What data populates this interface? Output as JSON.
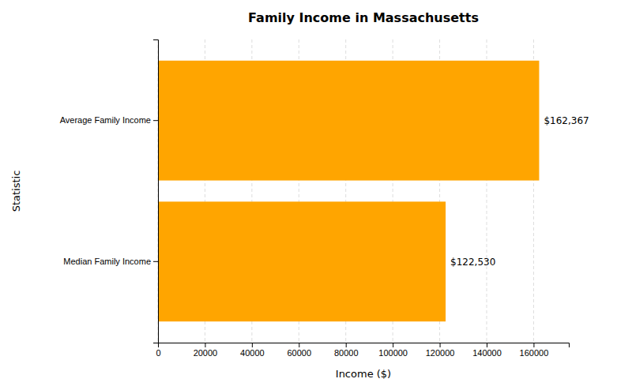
{
  "chart_data": {
    "type": "bar",
    "orientation": "horizontal",
    "title": "Family Income in Massachusetts",
    "xlabel": "Income ($)",
    "ylabel": "Statistic",
    "categories": [
      "Median Family Income",
      "Average Family Income"
    ],
    "values": [
      122530,
      162367
    ],
    "value_labels": [
      "$122,530",
      "$162,367"
    ],
    "data_labels": true,
    "color": "#FFA500",
    "xlim": [
      0,
      175000
    ],
    "xticks": [
      0,
      20000,
      40000,
      60000,
      80000,
      100000,
      120000,
      140000,
      160000
    ],
    "grid": true
  }
}
